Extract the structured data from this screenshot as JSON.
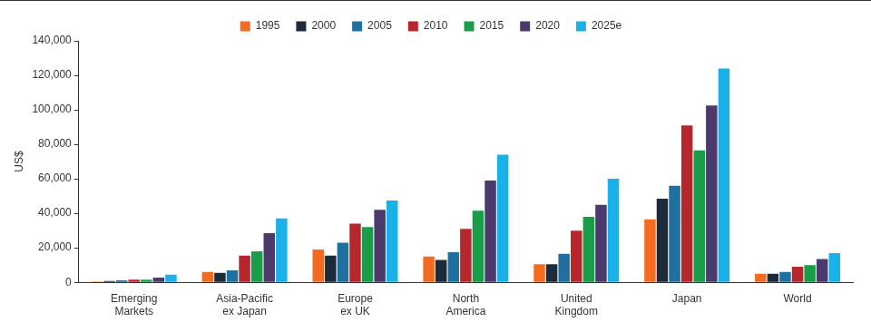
{
  "chart_data": {
    "type": "bar",
    "y_label": "US$",
    "categories": [
      "Emerging Markets",
      "Asia-Pacific ex Japan",
      "Europe ex UK",
      "North America",
      "United Kingdom",
      "Japan",
      "World"
    ],
    "series": [
      {
        "name": "1995",
        "color": "#f26b21",
        "values": [
          500,
          6000,
          19000,
          15000,
          10500,
          36500,
          5000
        ]
      },
      {
        "name": "2000",
        "color": "#1c2b39",
        "values": [
          800,
          5500,
          15500,
          13000,
          10500,
          48500,
          5000
        ]
      },
      {
        "name": "2005",
        "color": "#1f6f9f",
        "values": [
          1200,
          7000,
          23000,
          17500,
          16500,
          56000,
          6000
        ]
      },
      {
        "name": "2010",
        "color": "#b5272d",
        "values": [
          1500,
          15500,
          34000,
          31000,
          30000,
          91000,
          9000
        ]
      },
      {
        "name": "2015",
        "color": "#1a9d49",
        "values": [
          1500,
          18000,
          32000,
          41500,
          38000,
          76500,
          10000
        ]
      },
      {
        "name": "2020",
        "color": "#4b3a6b",
        "values": [
          2800,
          28500,
          42000,
          59000,
          45000,
          102500,
          13500
        ]
      },
      {
        "name": "2025e",
        "color": "#1ab0e8",
        "values": [
          4500,
          37000,
          47500,
          74000,
          60000,
          124000,
          17000
        ]
      }
    ],
    "ylim": [
      0,
      140000
    ],
    "yticks": [
      0,
      {
        "value": 20000,
        "label": "20,000"
      },
      {
        "value": 40000,
        "label": "40,000"
      },
      {
        "value": 60000,
        "label": "60,000"
      },
      {
        "value": 80000,
        "label": "80,000"
      },
      {
        "value": 100000,
        "label": "100,000"
      },
      {
        "value": 120000,
        "label": "120,000"
      },
      {
        "value": 140000,
        "label": "140,000"
      }
    ],
    "grid": false,
    "legend": "top"
  }
}
